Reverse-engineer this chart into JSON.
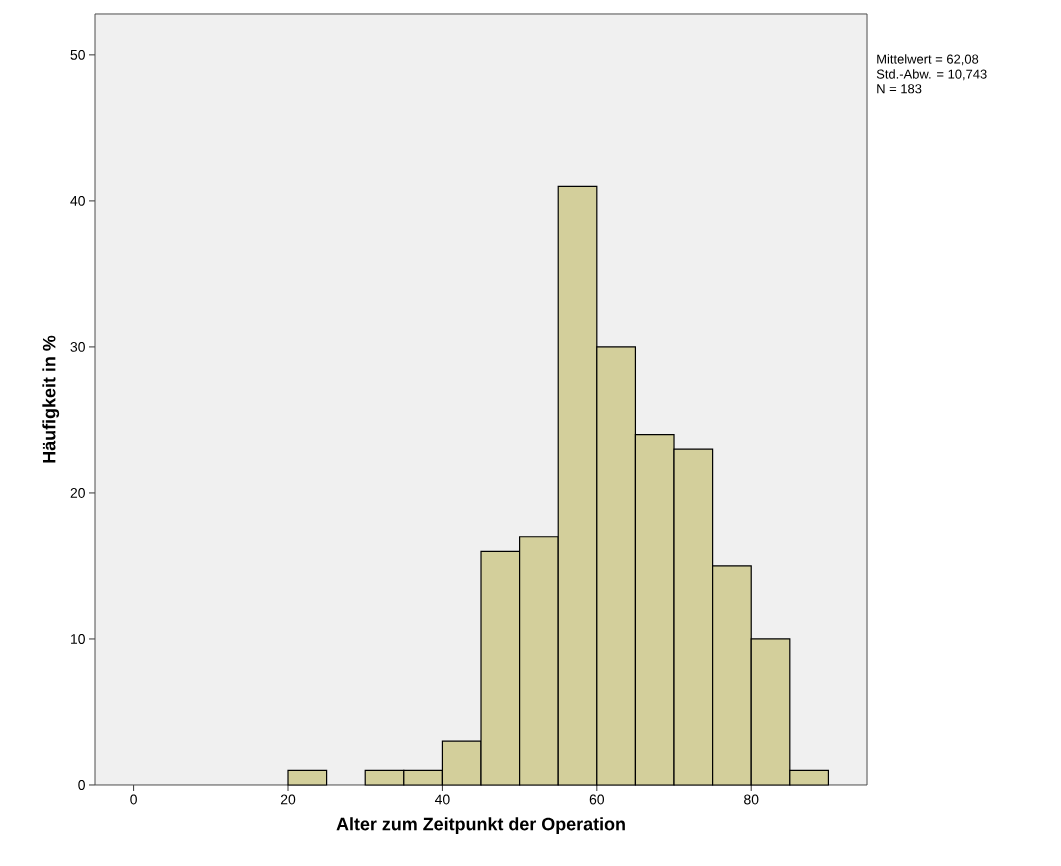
{
  "chart_data": {
    "type": "histogram",
    "xlabel": "Alter zum Zeitpunkt der Operation",
    "ylabel": "Häufigkeit in %",
    "bins": [
      20,
      25,
      30,
      35,
      40,
      45,
      50,
      55,
      60,
      65,
      70,
      75,
      80,
      85,
      90
    ],
    "values": [
      1,
      0,
      1,
      1,
      3,
      16,
      17,
      41,
      30,
      24,
      23,
      15,
      10,
      1
    ],
    "color": "#d3cf9b",
    "xlim": [
      -5,
      95
    ],
    "ylim": [
      0,
      52.8
    ],
    "xticks": [
      0,
      20,
      40,
      60,
      80
    ],
    "yticks": [
      0,
      10,
      20,
      30,
      40,
      50
    ],
    "grid": false,
    "annotations": [
      "Mittelwert = 62,08",
      "Std.-Abw. = 10,743",
      "N = 183"
    ]
  }
}
